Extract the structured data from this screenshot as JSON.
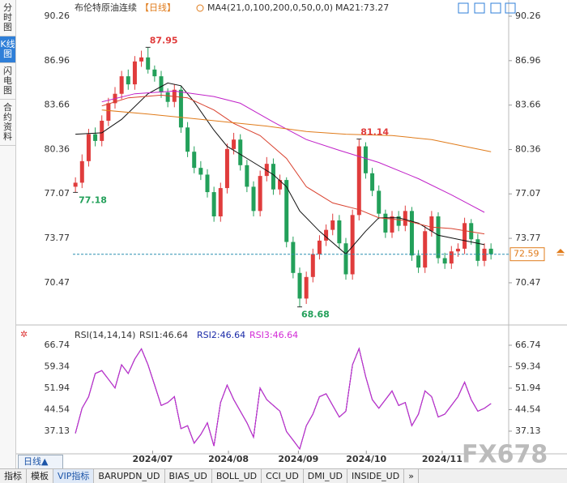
{
  "chart_data": [
    {
      "type": "candlestick",
      "title": "布伦特原油连续",
      "period": "【日线】",
      "indicator": "MA4(21,0,100,200,0,50,0,0)",
      "up_color": "#e03c3c",
      "down_color": "#23a05a",
      "candles": {
        "open": [
          77.6,
          77.9,
          79.5,
          81.5,
          81.0,
          82.5,
          83.8,
          84.5,
          85.8,
          85.2,
          86.9,
          87.2,
          86.3,
          85.8,
          84.6,
          83.9,
          84.8,
          82.0,
          80.2,
          79.0,
          78.5,
          77.2,
          75.4,
          77.5,
          80.4,
          81.1,
          79.2,
          77.6,
          75.8,
          78.4,
          79.3,
          77.4,
          78.1,
          73.5,
          71.2,
          69.3,
          70.9,
          72.6,
          73.6,
          74.4,
          75.1,
          73.4,
          71.1,
          75.5,
          80.6,
          78.6,
          77.3,
          75.6,
          74.2,
          75.4,
          74.7,
          75.8,
          72.5,
          71.6,
          74.3,
          75.4,
          72.3,
          71.9,
          72.8,
          73.0,
          74.9,
          73.7,
          72.1,
          73.0
        ],
        "high": [
          78.3,
          80.0,
          81.9,
          82.0,
          82.9,
          84.2,
          85.0,
          86.2,
          86.3,
          87.3,
          87.7,
          87.95,
          86.6,
          86.2,
          84.9,
          85.2,
          85.1,
          82.4,
          80.6,
          79.5,
          78.9,
          77.6,
          77.9,
          80.8,
          81.6,
          81.5,
          79.6,
          78.0,
          78.8,
          79.8,
          79.7,
          78.5,
          78.3,
          73.9,
          71.6,
          71.3,
          73.0,
          74.0,
          74.8,
          75.6,
          75.5,
          73.8,
          75.9,
          81.14,
          80.9,
          79.0,
          77.7,
          75.9,
          75.8,
          75.8,
          76.2,
          76.1,
          72.9,
          74.7,
          75.8,
          75.7,
          72.7,
          73.2,
          73.4,
          75.3,
          75.2,
          74.1,
          73.4,
          73.4
        ],
        "low": [
          77.18,
          77.5,
          79.1,
          80.6,
          80.6,
          82.1,
          83.4,
          84.1,
          84.8,
          84.8,
          86.5,
          86.0,
          85.4,
          84.2,
          83.5,
          83.5,
          81.6,
          79.8,
          78.6,
          78.1,
          76.8,
          75.0,
          75.0,
          77.1,
          80.0,
          78.8,
          77.2,
          75.4,
          75.4,
          78.0,
          77.0,
          77.0,
          73.1,
          70.8,
          68.68,
          68.9,
          70.5,
          72.2,
          73.2,
          74.0,
          73.0,
          70.7,
          70.7,
          75.1,
          78.2,
          76.9,
          75.2,
          73.8,
          73.8,
          74.3,
          74.3,
          72.1,
          71.2,
          71.2,
          73.9,
          71.9,
          71.5,
          71.5,
          72.4,
          72.6,
          73.3,
          71.7,
          71.7,
          72.2
        ],
        "close": [
          77.9,
          79.5,
          81.5,
          81.0,
          82.5,
          83.8,
          84.5,
          85.8,
          85.2,
          86.9,
          87.2,
          86.3,
          85.8,
          84.6,
          83.9,
          84.8,
          82.0,
          80.2,
          79.0,
          78.5,
          77.2,
          75.4,
          77.5,
          80.4,
          81.1,
          79.2,
          77.6,
          75.8,
          78.4,
          79.3,
          77.4,
          78.1,
          73.5,
          71.2,
          69.3,
          70.9,
          72.6,
          73.6,
          74.4,
          75.1,
          73.4,
          71.1,
          75.5,
          80.6,
          78.6,
          77.3,
          75.6,
          74.2,
          75.4,
          74.7,
          75.8,
          72.5,
          71.6,
          74.3,
          75.4,
          72.3,
          71.9,
          72.8,
          73.0,
          74.9,
          73.7,
          72.1,
          73.0,
          72.59
        ]
      },
      "series": [
        {
          "name": "MA21:73.27",
          "color": "#111111",
          "x": [
            0,
            4,
            7,
            11,
            14,
            16,
            18,
            21,
            23,
            26,
            30,
            32,
            34,
            37,
            41,
            44,
            46,
            49,
            52,
            55,
            58,
            62
          ],
          "values": [
            81.5,
            81.6,
            82.6,
            84.5,
            85.3,
            85.1,
            83.9,
            81.8,
            80.6,
            79.7,
            78.5,
            77.6,
            75.8,
            74.3,
            72.6,
            74.3,
            75.3,
            75.3,
            74.9,
            74.0,
            73.7,
            73.3
          ]
        },
        {
          "color": "#d9412e",
          "x": [
            4,
            8,
            13,
            17,
            21,
            24,
            28,
            32,
            35,
            39,
            43,
            46,
            50,
            54,
            57,
            62
          ],
          "values": [
            83.6,
            84.2,
            84.4,
            84.2,
            83.3,
            82.3,
            81.4,
            79.7,
            77.6,
            76.4,
            75.9,
            75.3,
            75.1,
            74.6,
            74.5,
            74.1
          ]
        },
        {
          "color": "#c020c8",
          "x": [
            4,
            9,
            15,
            21,
            25,
            30,
            35,
            40,
            46,
            52,
            57,
            62
          ],
          "values": [
            83.9,
            84.5,
            84.7,
            84.3,
            83.8,
            82.4,
            81.1,
            80.3,
            79.4,
            78.2,
            77.0,
            75.7
          ]
        },
        {
          "color": "#e07b1a",
          "x": [
            4,
            11,
            17,
            23,
            29,
            35,
            41,
            48,
            54,
            59,
            63
          ],
          "values": [
            83.3,
            83.0,
            82.7,
            82.4,
            82.1,
            81.7,
            81.5,
            81.4,
            81.1,
            80.6,
            80.2
          ]
        }
      ],
      "annotations": [
        87.95,
        77.18,
        81.14,
        68.68
      ],
      "last_price": 72.59,
      "ylim": [
        67.88,
        90.74
      ],
      "yticks": [
        90.26,
        86.96,
        83.66,
        80.36,
        77.07,
        73.77,
        70.47
      ],
      "xlim": [
        -1,
        64.7
      ],
      "xticks": [
        {
          "value": 11.7,
          "label": "2024/07"
        },
        {
          "value": 23.2,
          "label": "2024/08"
        },
        {
          "value": 33.8,
          "label": "2024/09"
        },
        {
          "value": 44.1,
          "label": "2024/10"
        },
        {
          "value": 55.6,
          "label": "2024/11"
        }
      ]
    },
    {
      "type": "line",
      "title": "RSI(14,14,14)",
      "series": [
        {
          "name": "RSI1:46.64",
          "color": "#222222",
          "values": [
            36.4,
            45,
            49,
            57,
            58,
            55,
            52,
            60,
            57,
            62,
            65.5,
            60,
            53,
            46,
            47,
            49,
            38,
            39,
            33,
            36,
            40,
            32,
            47,
            53,
            48,
            44,
            40,
            35,
            52,
            48,
            46,
            44,
            37,
            34,
            31,
            39,
            43,
            49,
            50,
            46,
            42,
            44,
            60,
            65.6,
            56,
            48,
            45,
            48,
            51,
            46,
            47,
            39,
            43,
            51,
            49,
            42,
            43,
            46,
            49,
            54,
            48,
            44,
            45,
            46.64
          ]
        },
        {
          "name": "RSI2:46.64",
          "color": "#1a2aa8",
          "values": [
            36.4,
            45,
            49,
            57,
            58,
            55,
            52,
            60,
            57,
            62,
            65.5,
            60,
            53,
            46,
            47,
            49,
            38,
            39,
            33,
            36,
            40,
            32,
            47,
            53,
            48,
            44,
            40,
            35,
            52,
            48,
            46,
            44,
            37,
            34,
            31,
            39,
            43,
            49,
            50,
            46,
            42,
            44,
            60,
            65.6,
            56,
            48,
            45,
            48,
            51,
            46,
            47,
            39,
            43,
            51,
            49,
            42,
            43,
            46,
            49,
            54,
            48,
            44,
            45,
            46.64
          ]
        },
        {
          "name": "RSI3:46.64",
          "color": "#d22ad6",
          "values": [
            36.4,
            45,
            49,
            57,
            58,
            55,
            52,
            60,
            57,
            62,
            65.5,
            60,
            53,
            46,
            47,
            49,
            38,
            39,
            33,
            36,
            40,
            32,
            47,
            53,
            48,
            44,
            40,
            35,
            52,
            48,
            46,
            44,
            37,
            34,
            31,
            39,
            43,
            49,
            50,
            46,
            42,
            44,
            60,
            65.6,
            56,
            48,
            45,
            48,
            51,
            46,
            47,
            39,
            43,
            51,
            49,
            42,
            43,
            46,
            49,
            54,
            48,
            44,
            45,
            46.64
          ]
        }
      ],
      "ylim": [
        30.43,
        70.65
      ],
      "yticks": [
        66.74,
        59.34,
        51.94,
        44.54,
        37.13
      ],
      "xlim": [
        -1,
        64.7
      ]
    }
  ],
  "sidebar": [
    "分时图",
    "K线图",
    "闪电图",
    "合约资料"
  ],
  "period_button": "日线▲",
  "toolbar": [
    "指标",
    "模板",
    "VIP指标",
    "BARUPDN_UD",
    "BIAS_UD",
    "BOLL_UD",
    "CCI_UD",
    "DMI_UD",
    "INSIDE_UD",
    "»"
  ],
  "watermark": "FX678"
}
